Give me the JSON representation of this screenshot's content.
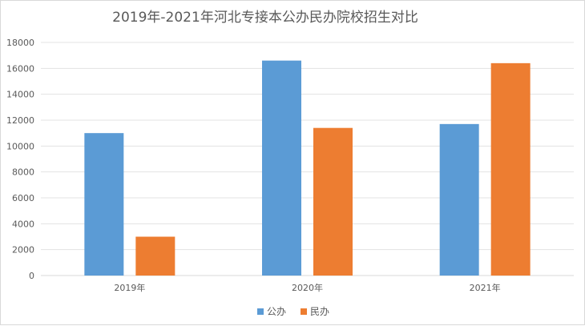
{
  "chart_data": {
    "type": "bar",
    "title": "2019年-2021年河北专接本公办民办院校招生对比",
    "categories": [
      "2019年",
      "2020年",
      "2021年"
    ],
    "series": [
      {
        "name": "公办",
        "color": "#5b9bd5",
        "values": [
          11000,
          16600,
          11700
        ]
      },
      {
        "name": "民办",
        "color": "#ed7d31",
        "values": [
          3000,
          11400,
          16400
        ]
      }
    ],
    "ylim": [
      0,
      18000
    ],
    "yticks": [
      0,
      2000,
      4000,
      6000,
      8000,
      10000,
      12000,
      14000,
      16000,
      18000
    ],
    "grid": true,
    "legend_position": "bottom"
  }
}
